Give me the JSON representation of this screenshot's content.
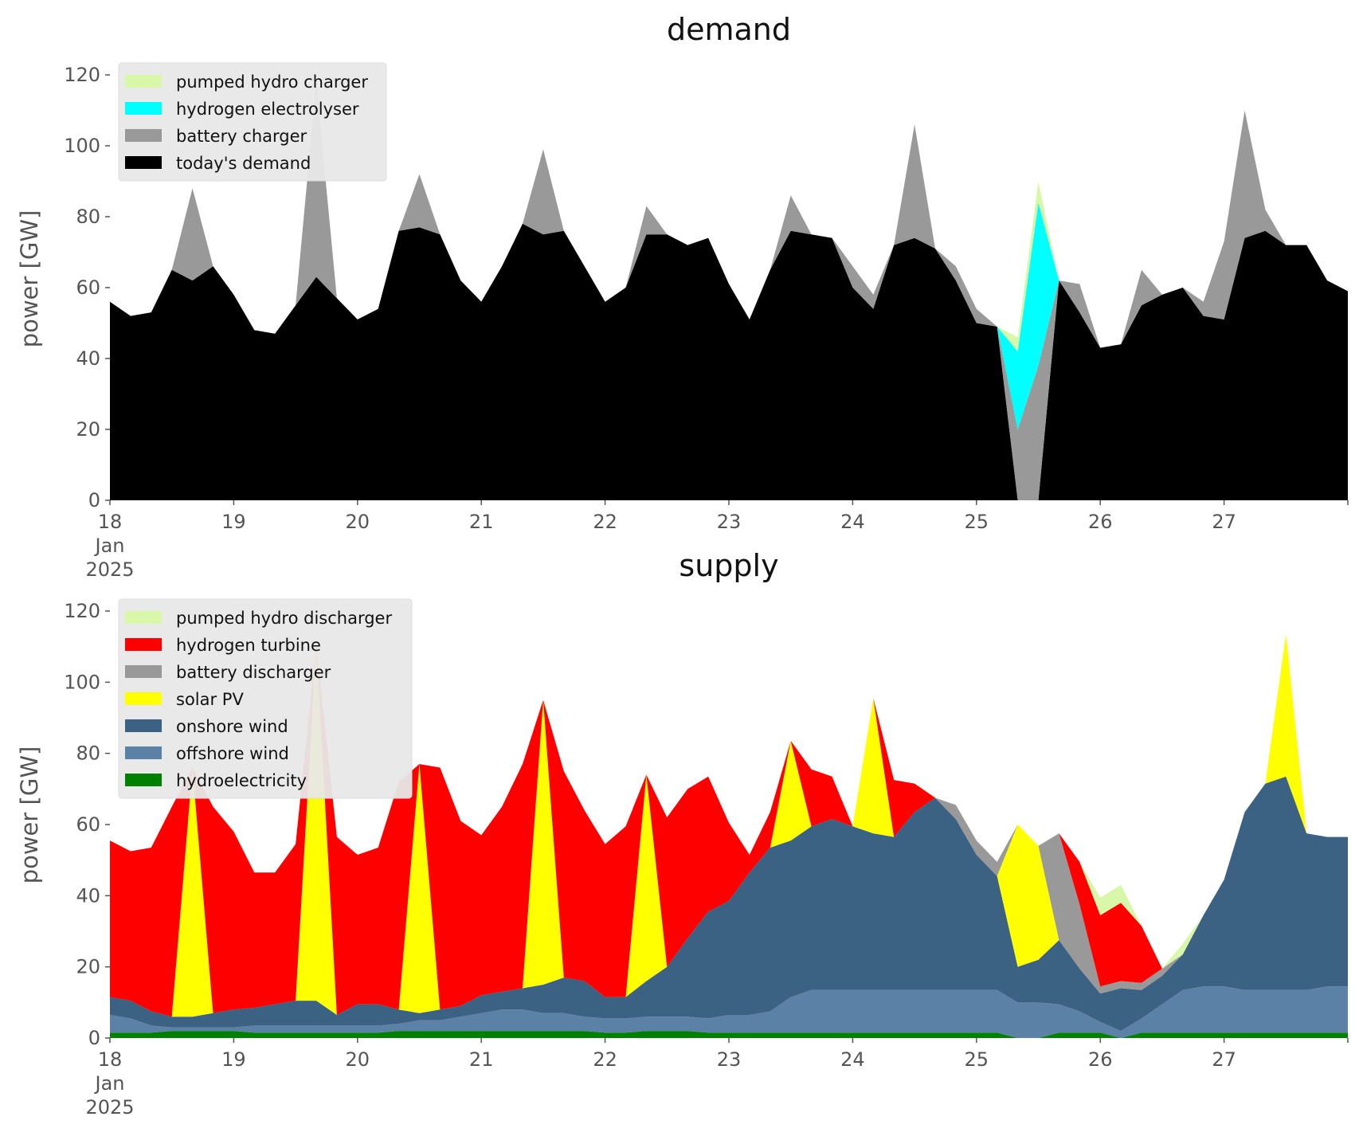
{
  "chart_data": [
    {
      "type": "area",
      "title": "demand",
      "ylabel": "power [GW]",
      "xlabel": "",
      "ylim": [
        0,
        120
      ],
      "yticks": [
        0,
        20,
        40,
        60,
        80,
        100,
        120
      ],
      "xlim": [
        "2025-01-18",
        "2025-01-28"
      ],
      "xticks": [
        "18",
        "19",
        "20",
        "21",
        "22",
        "23",
        "24",
        "25",
        "26",
        "27"
      ],
      "xtick_extra": [
        "Jan",
        "2025"
      ],
      "grid": false,
      "legend_position": "top-left",
      "series_x_dates_hours": "2025-01-18T00 + hour offsets listed in x",
      "x": [
        0,
        4,
        8,
        12,
        16,
        20,
        24,
        28,
        32,
        36,
        40,
        44,
        48,
        52,
        56,
        60,
        64,
        68,
        72,
        76,
        80,
        84,
        88,
        92,
        96,
        100,
        104,
        108,
        112,
        116,
        120,
        124,
        128,
        132,
        136,
        140,
        144,
        148,
        152,
        156,
        160,
        164,
        168,
        172,
        176,
        180,
        184,
        188,
        192,
        196,
        200,
        204,
        208,
        212,
        216,
        220,
        224,
        228,
        232,
        236,
        240
      ],
      "series": [
        {
          "name": "today's demand",
          "color": "#000000",
          "values": [
            56,
            52,
            53,
            65,
            62,
            66,
            58,
            48,
            47,
            55,
            63,
            57,
            51,
            54,
            76,
            77,
            75,
            62,
            56,
            66,
            78,
            75,
            76,
            66,
            56,
            60,
            75,
            75,
            72,
            74,
            61,
            51,
            65,
            76,
            75,
            74,
            60,
            54,
            72,
            74,
            71,
            62,
            50,
            49,
            0,
            0,
            62,
            53,
            43,
            44,
            55,
            58,
            60,
            52,
            51,
            74,
            76,
            72,
            72,
            62,
            59
          ]
        },
        {
          "name": "battery charger",
          "color": "#999999",
          "values": [
            0,
            0,
            0,
            0,
            26,
            0,
            0,
            0,
            0,
            0,
            55,
            0,
            0,
            0,
            0,
            15,
            0,
            0,
            0,
            0,
            0,
            24,
            0,
            0,
            0,
            0,
            8,
            0,
            0,
            0,
            0,
            0,
            0,
            10,
            0,
            0,
            6,
            4,
            0,
            32,
            0,
            4,
            4,
            0,
            20,
            38,
            0,
            8,
            0,
            0,
            10,
            0,
            0,
            4,
            22,
            36,
            6,
            0,
            0,
            0,
            0
          ]
        },
        {
          "name": "hydrogen electrolyser",
          "color": "#00ffff",
          "values": [
            0,
            0,
            0,
            0,
            0,
            0,
            0,
            0,
            0,
            0,
            0,
            0,
            0,
            0,
            0,
            0,
            0,
            0,
            0,
            0,
            0,
            0,
            0,
            0,
            0,
            0,
            0,
            0,
            0,
            0,
            0,
            0,
            0,
            0,
            0,
            0,
            0,
            0,
            0,
            0,
            0,
            0,
            0,
            0,
            22,
            46,
            0,
            0,
            0,
            0,
            0,
            0,
            0,
            0,
            0,
            0,
            0,
            0,
            0,
            0,
            0
          ]
        },
        {
          "name": "pumped hydro charger",
          "color": "#d9f7a8",
          "values": [
            0,
            0,
            0,
            0,
            0,
            0,
            0,
            0,
            0,
            0,
            0,
            0,
            0,
            0,
            0,
            0,
            0,
            0,
            0,
            0,
            0,
            0,
            0,
            0,
            0,
            0,
            0,
            0,
            0,
            0,
            0,
            0,
            0,
            0,
            0,
            0,
            0,
            0,
            0,
            0,
            0,
            0,
            0,
            0,
            4,
            6,
            0,
            0,
            0,
            0,
            0,
            0,
            0,
            0,
            0,
            0,
            0,
            0,
            0,
            0,
            0
          ]
        }
      ],
      "legend_order": [
        "pumped hydro charger",
        "hydrogen electrolyser",
        "battery charger",
        "today's demand"
      ]
    },
    {
      "type": "area",
      "title": "supply",
      "ylabel": "power [GW]",
      "xlabel": "",
      "ylim": [
        0,
        120
      ],
      "yticks": [
        0,
        20,
        40,
        60,
        80,
        100,
        120
      ],
      "xlim": [
        "2025-01-18",
        "2025-01-28"
      ],
      "xticks": [
        "18",
        "19",
        "20",
        "21",
        "22",
        "23",
        "24",
        "25",
        "26",
        "27"
      ],
      "xtick_extra": [
        "Jan",
        "2025"
      ],
      "grid": false,
      "legend_position": "top-left",
      "x": [
        0,
        4,
        8,
        12,
        16,
        20,
        24,
        28,
        32,
        36,
        40,
        44,
        48,
        52,
        56,
        60,
        64,
        68,
        72,
        76,
        80,
        84,
        88,
        92,
        96,
        100,
        104,
        108,
        112,
        116,
        120,
        124,
        128,
        132,
        136,
        140,
        144,
        148,
        152,
        156,
        160,
        164,
        168,
        172,
        176,
        180,
        184,
        188,
        192,
        196,
        200,
        204,
        208,
        212,
        216,
        220,
        224,
        228,
        232,
        236,
        240
      ],
      "series": [
        {
          "name": "hydroelectricity",
          "color": "#008000",
          "values": [
            1.5,
            1.5,
            1.5,
            2,
            2,
            2,
            2,
            1.5,
            1.5,
            1.5,
            1.5,
            1.5,
            1.5,
            1.5,
            2,
            2,
            2,
            2,
            2,
            2,
            2,
            2,
            2,
            2,
            1.5,
            1.5,
            2,
            2,
            2,
            1.5,
            1.5,
            1.5,
            1.5,
            1.5,
            1.5,
            1.5,
            1.5,
            1.5,
            1.5,
            1.5,
            1.5,
            1.5,
            1.5,
            1.5,
            0,
            0,
            1.5,
            1.5,
            1.5,
            0,
            1.5,
            1.5,
            1.5,
            1.5,
            1.5,
            1.5,
            1.5,
            1.5,
            1.5,
            1.5,
            1.5
          ]
        },
        {
          "name": "offshore wind",
          "color": "#5b82a6",
          "values": [
            5,
            4,
            2,
            1,
            1,
            1,
            1,
            2,
            2,
            2,
            2,
            2,
            2,
            2,
            2,
            3,
            3,
            4,
            5,
            6,
            6,
            5,
            5,
            4,
            4,
            4,
            4,
            4,
            4,
            4,
            5,
            5,
            6,
            10,
            12,
            12,
            12,
            12,
            12,
            12,
            12,
            12,
            12,
            12,
            10,
            10,
            8,
            6,
            3,
            2,
            4,
            8,
            12,
            13,
            13,
            12,
            12,
            12,
            12,
            13,
            13
          ]
        },
        {
          "name": "onshore wind",
          "color": "#3c6283",
          "values": [
            5,
            5,
            4,
            3,
            3,
            4,
            5,
            5,
            6,
            7,
            7,
            3,
            6,
            6,
            4,
            2,
            3,
            3,
            5,
            5,
            6,
            8,
            10,
            10,
            6,
            6,
            10,
            14,
            22,
            30,
            32,
            40,
            46,
            44,
            46,
            48,
            46,
            44,
            43,
            50,
            54,
            48,
            38,
            32,
            10,
            12,
            18,
            12,
            8,
            12,
            8,
            8,
            10,
            20,
            30,
            50,
            58,
            60,
            44,
            42,
            42
          ]
        },
        {
          "name": "solar PV",
          "color": "#ffff00",
          "values": [
            0,
            0,
            0,
            0,
            70,
            0,
            0,
            0,
            0,
            0,
            100,
            0,
            0,
            0,
            0,
            70,
            0,
            0,
            0,
            0,
            0,
            80,
            0,
            0,
            0,
            0,
            58,
            0,
            0,
            0,
            0,
            0,
            0,
            28,
            0,
            0,
            0,
            38,
            0,
            0,
            0,
            0,
            0,
            0,
            40,
            32,
            0,
            0,
            0,
            0,
            0,
            0,
            0,
            0,
            0,
            0,
            0,
            40,
            0,
            0,
            0
          ]
        },
        {
          "name": "battery discharger",
          "color": "#999999",
          "values": [
            0,
            0,
            0,
            0,
            0,
            0,
            0,
            0,
            0,
            0,
            0,
            0,
            0,
            0,
            0,
            0,
            0,
            0,
            0,
            0,
            0,
            0,
            0,
            0,
            0,
            0,
            0,
            0,
            0,
            0,
            0,
            0,
            0,
            0,
            0,
            0,
            0,
            0,
            0,
            0,
            0,
            4,
            4,
            4,
            0,
            0,
            30,
            18,
            2,
            2,
            2,
            2,
            0,
            0,
            0,
            0,
            0,
            0,
            0,
            0,
            0
          ]
        },
        {
          "name": "hydrogen turbine",
          "color": "#ff0000",
          "values": [
            44,
            42,
            46,
            59,
            0,
            58,
            50,
            38,
            37,
            44,
            0,
            50,
            42,
            44,
            64,
            0,
            68,
            52,
            45,
            52,
            63,
            0,
            58,
            48,
            43,
            48,
            0,
            42,
            42,
            38,
            22,
            5,
            10,
            0,
            16,
            12,
            0,
            0,
            16,
            8,
            0,
            0,
            0,
            0,
            0,
            0,
            0,
            12,
            20,
            22,
            16,
            0,
            0,
            0,
            0,
            0,
            0,
            0,
            0,
            0,
            0
          ]
        },
        {
          "name": "pumped hydro discharger",
          "color": "#d9f7a8",
          "values": [
            0,
            0,
            0,
            0,
            0,
            0,
            0,
            0,
            0,
            0,
            0,
            0,
            0,
            0,
            0,
            0,
            0,
            0,
            0,
            0,
            0,
            0,
            0,
            0,
            0,
            0,
            0,
            0,
            0,
            0,
            0,
            0,
            0,
            0,
            0,
            0,
            0,
            0,
            0,
            0,
            0,
            0,
            0,
            0,
            0,
            0,
            0,
            0,
            5,
            5,
            0,
            0,
            3,
            0,
            0,
            0,
            0,
            0,
            0,
            0,
            0
          ]
        }
      ],
      "legend_order": [
        "pumped hydro discharger",
        "hydrogen turbine",
        "battery discharger",
        "solar PV",
        "onshore wind",
        "offshore wind",
        "hydroelectricity"
      ]
    }
  ]
}
